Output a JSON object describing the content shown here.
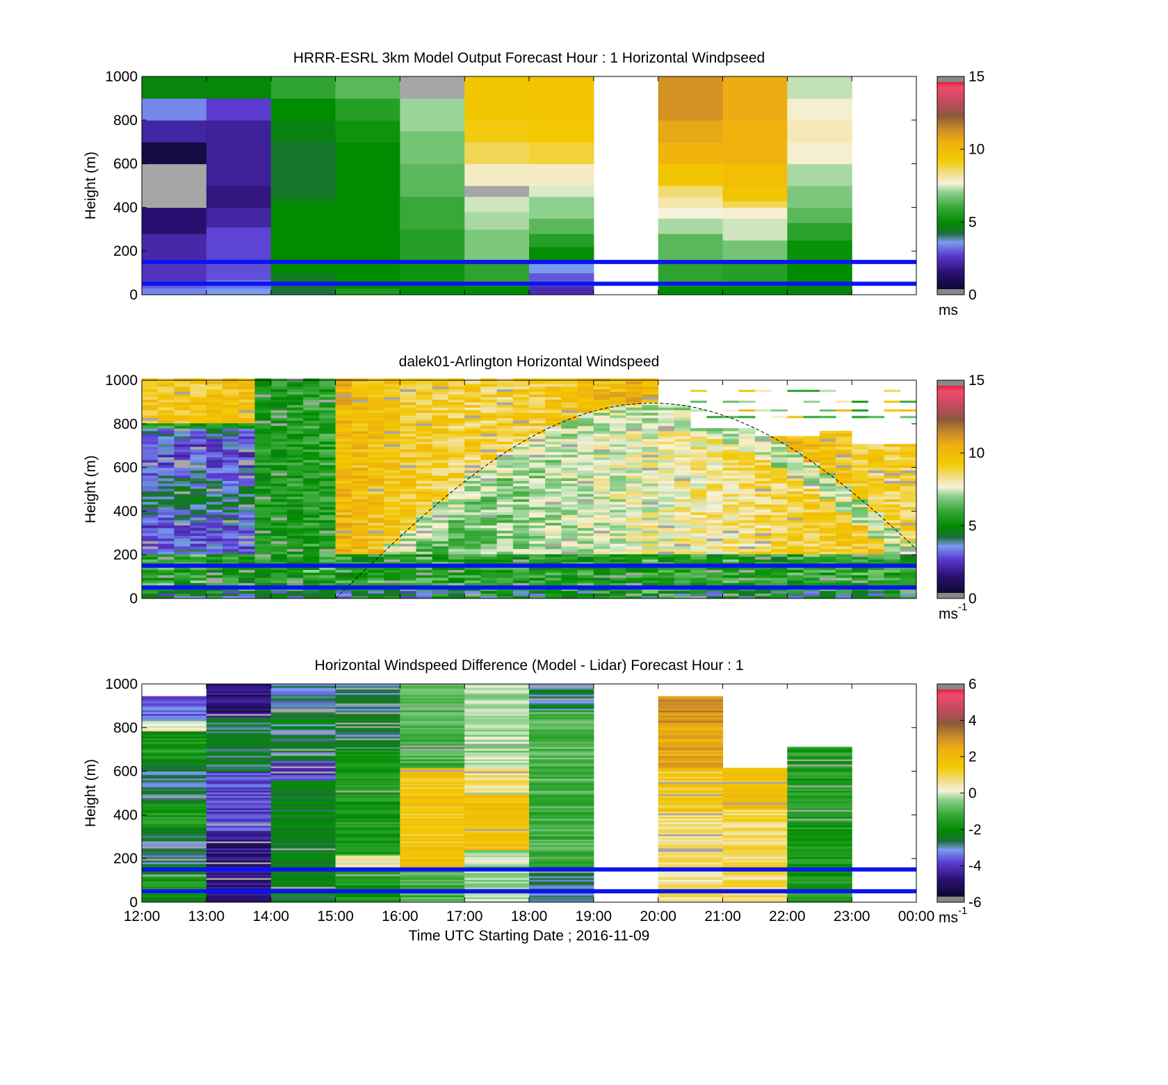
{
  "chart_data": [
    {
      "type": "heatmap",
      "title": "HRRR-ESRL 3km Model Output   Forecast Hour : 1 Horizontal Windpseed",
      "ylabel": "Height (m)",
      "xlim": [
        "12:00",
        "00:00"
      ],
      "ylim": [
        0,
        1000
      ],
      "yticks": [
        "0",
        "200",
        "400",
        "600",
        "800",
        "1000"
      ],
      "colorbar": {
        "min": 0,
        "max": 15,
        "ticks": [
          "0",
          "5",
          "10",
          "15"
        ],
        "unit": "ms"
      },
      "reference_heights_m": [
        150,
        50
      ],
      "data_summary": [
        {
          "time": "12:00",
          "approx_speed_ms": [
            2,
            4
          ]
        },
        {
          "time": "13:00",
          "approx_speed_ms": [
            2,
            4
          ]
        },
        {
          "time": "14:00",
          "approx_speed_ms": [
            4,
            6
          ]
        },
        {
          "time": "15:00",
          "approx_speed_ms": [
            5,
            7
          ]
        },
        {
          "time": "16:00",
          "approx_speed_ms": [
            5,
            8
          ]
        },
        {
          "time": "17:00",
          "approx_speed_ms": [
            6,
            9
          ]
        },
        {
          "time": "18:00",
          "approx_speed_ms": [
            3,
            9
          ]
        },
        {
          "time": "19:00",
          "approx_speed_ms": null
        },
        {
          "time": "20:00",
          "approx_speed_ms": [
            5,
            11
          ]
        },
        {
          "time": "21:00",
          "approx_speed_ms": [
            5,
            10
          ]
        },
        {
          "time": "22:00",
          "approx_speed_ms": [
            5,
            8
          ]
        },
        {
          "time": "23:00",
          "approx_speed_ms": null
        }
      ]
    },
    {
      "type": "heatmap",
      "title": "dalek01-Arlington  Horizontal Windspeed",
      "ylabel": "Height (m)",
      "xlim": [
        "12:00",
        "00:00"
      ],
      "ylim": [
        0,
        1000
      ],
      "yticks": [
        "0",
        "200",
        "400",
        "600",
        "800",
        "1000"
      ],
      "colorbar": {
        "min": 0,
        "max": 15,
        "ticks": [
          "0",
          "5",
          "10",
          "15"
        ],
        "unit": "ms",
        "unit_sup": "-1"
      },
      "reference_heights_m": [
        150,
        50
      ],
      "boundary_layer_curve": "dashed arc from ~15:00 (0 m) peaking ~895 m near 19:45, reaching ~170 m at 00:00"
    },
    {
      "type": "heatmap",
      "title": "Horizontal Windspeed Difference (Model - Lidar) Forecast Hour : 1",
      "ylabel": "Height (m)",
      "xlabel": "Time UTC  Starting Date ; 2016-11-09",
      "xticks": [
        "12:00",
        "13:00",
        "14:00",
        "15:00",
        "16:00",
        "17:00",
        "18:00",
        "19:00",
        "20:00",
        "21:00",
        "22:00",
        "23:00",
        "00:00"
      ],
      "ylim": [
        0,
        1000
      ],
      "yticks": [
        "0",
        "200",
        "400",
        "600",
        "800",
        "1000"
      ],
      "colorbar": {
        "min": -6,
        "max": 6,
        "ticks": [
          "-6",
          "-4",
          "-2",
          "0",
          "2",
          "4",
          "6"
        ],
        "unit": "ms",
        "unit_sup": "-1"
      },
      "reference_heights_m": [
        150,
        50
      ],
      "column_tops_m": [
        940,
        1000,
        1000,
        1000,
        1000,
        1000,
        1000,
        null,
        940,
        615,
        705,
        null
      ]
    }
  ]
}
